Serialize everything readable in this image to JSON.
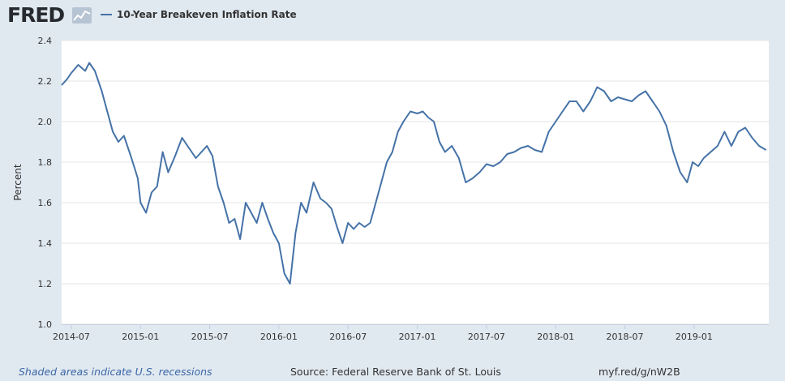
{
  "header": {
    "logo_text": "FRED",
    "legend_label": "10-Year Breakeven Inflation Rate",
    "series_color": "#4572a7"
  },
  "footer": {
    "recession_note": "Shaded areas indicate U.S. recessions",
    "source": "Source: Federal Reserve Bank of St. Louis",
    "short_url": "myf.red/g/nW2B"
  },
  "chart_data": {
    "type": "line",
    "title": "10-Year Breakeven Inflation Rate",
    "xlabel": "",
    "ylabel": "Percent",
    "ylim": [
      1.0,
      2.4
    ],
    "yticks": [
      1.0,
      1.2,
      1.4,
      1.6,
      1.8,
      2.0,
      2.2,
      2.4
    ],
    "ytick_labels": [
      "1.0",
      "1.2",
      "1.4",
      "1.6",
      "1.8",
      "2.0",
      "2.2",
      "2.4"
    ],
    "xlim": [
      2014.43,
      2019.54
    ],
    "xticks": [
      2014.5,
      2015.0,
      2015.5,
      2016.0,
      2016.5,
      2017.0,
      2017.5,
      2018.0,
      2018.5,
      2019.0
    ],
    "xtick_labels": [
      "2014-07",
      "2015-01",
      "2015-07",
      "2016-01",
      "2016-07",
      "2017-01",
      "2017-07",
      "2018-01",
      "2018-07",
      "2019-01"
    ],
    "grid": true,
    "series": [
      {
        "name": "10-Year Breakeven Inflation Rate",
        "x": [
          2014.43,
          2014.47,
          2014.5,
          2014.55,
          2014.6,
          2014.63,
          2014.67,
          2014.72,
          2014.76,
          2014.8,
          2014.84,
          2014.88,
          2014.93,
          2014.98,
          2015.0,
          2015.04,
          2015.08,
          2015.12,
          2015.16,
          2015.2,
          2015.25,
          2015.3,
          2015.35,
          2015.4,
          2015.44,
          2015.48,
          2015.52,
          2015.56,
          2015.6,
          2015.64,
          2015.68,
          2015.72,
          2015.76,
          2015.8,
          2015.84,
          2015.88,
          2015.92,
          2015.96,
          2016.0,
          2016.04,
          2016.08,
          2016.12,
          2016.16,
          2016.2,
          2016.25,
          2016.3,
          2016.34,
          2016.38,
          2016.42,
          2016.46,
          2016.5,
          2016.54,
          2016.58,
          2016.62,
          2016.66,
          2016.7,
          2016.74,
          2016.78,
          2016.82,
          2016.86,
          2016.9,
          2016.95,
          2017.0,
          2017.04,
          2017.08,
          2017.12,
          2017.16,
          2017.2,
          2017.25,
          2017.3,
          2017.35,
          2017.4,
          2017.45,
          2017.5,
          2017.55,
          2017.6,
          2017.65,
          2017.7,
          2017.75,
          2017.8,
          2017.85,
          2017.9,
          2017.95,
          2018.0,
          2018.05,
          2018.1,
          2018.15,
          2018.2,
          2018.25,
          2018.3,
          2018.35,
          2018.4,
          2018.45,
          2018.5,
          2018.55,
          2018.6,
          2018.65,
          2018.7,
          2018.75,
          2018.8,
          2018.85,
          2018.9,
          2018.95,
          2018.99,
          2019.03,
          2019.07,
          2019.12,
          2019.17,
          2019.22,
          2019.27,
          2019.32,
          2019.37,
          2019.42,
          2019.47,
          2019.52
        ],
        "y": [
          2.18,
          2.21,
          2.24,
          2.28,
          2.25,
          2.29,
          2.25,
          2.15,
          2.05,
          1.95,
          1.9,
          1.93,
          1.83,
          1.72,
          1.6,
          1.55,
          1.65,
          1.68,
          1.85,
          1.75,
          1.83,
          1.92,
          1.87,
          1.82,
          1.85,
          1.88,
          1.83,
          1.68,
          1.6,
          1.5,
          1.52,
          1.42,
          1.6,
          1.55,
          1.5,
          1.6,
          1.52,
          1.45,
          1.4,
          1.25,
          1.2,
          1.45,
          1.6,
          1.55,
          1.7,
          1.62,
          1.6,
          1.57,
          1.48,
          1.4,
          1.5,
          1.47,
          1.5,
          1.48,
          1.5,
          1.6,
          1.7,
          1.8,
          1.85,
          1.95,
          2.0,
          2.05,
          2.04,
          2.05,
          2.02,
          2.0,
          1.9,
          1.85,
          1.88,
          1.82,
          1.7,
          1.72,
          1.75,
          1.79,
          1.78,
          1.8,
          1.84,
          1.85,
          1.87,
          1.88,
          1.86,
          1.85,
          1.95,
          2.0,
          2.05,
          2.1,
          2.1,
          2.05,
          2.1,
          2.17,
          2.15,
          2.1,
          2.12,
          2.11,
          2.1,
          2.13,
          2.15,
          2.1,
          2.05,
          1.98,
          1.85,
          1.75,
          1.7,
          1.8,
          1.78,
          1.82,
          1.85,
          1.88,
          1.95,
          1.88,
          1.95,
          1.97,
          1.92,
          1.88,
          1.86
        ]
      }
    ]
  }
}
